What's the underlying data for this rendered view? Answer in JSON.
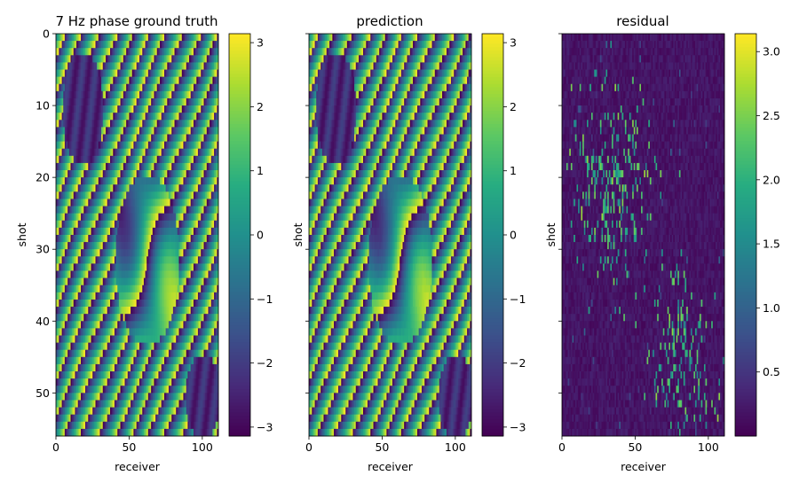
{
  "figure": {
    "panels": [
      {
        "title": "7 Hz phase ground truth",
        "kind": "phase",
        "seed": 1,
        "show_ytick_labels": true
      },
      {
        "title": "prediction",
        "kind": "phase",
        "seed": 2,
        "show_ytick_labels": false
      },
      {
        "title": "residual",
        "kind": "residual",
        "seed": 3,
        "show_ytick_labels": false
      }
    ],
    "colormap": [
      "#440154",
      "#472c7a",
      "#3b518b",
      "#2c718e",
      "#21908d",
      "#27ad81",
      "#5cc863",
      "#aadc32",
      "#fde725"
    ]
  },
  "chart_data": [
    {
      "type": "heatmap",
      "title": "7 Hz phase ground truth",
      "xlabel": "receiver",
      "ylabel": "shot",
      "xlim": [
        0,
        111
      ],
      "ylim": [
        56,
        0
      ],
      "xticks": [
        0,
        50,
        100
      ],
      "yticks": [
        0,
        10,
        20,
        30,
        40,
        50
      ],
      "colorbar": {
        "min": -3.14,
        "max": 3.14,
        "ticks": [
          3,
          2,
          1,
          0,
          -1,
          -2,
          -3
        ],
        "tick_labels": [
          "3",
          "2",
          "1",
          "0",
          "−1",
          "−2",
          "−3"
        ]
      }
    },
    {
      "type": "heatmap",
      "title": "prediction",
      "xlabel": "receiver",
      "ylabel": "shot",
      "xlim": [
        0,
        111
      ],
      "ylim": [
        56,
        0
      ],
      "xticks": [
        0,
        50,
        100
      ],
      "yticks": [
        0,
        10,
        20,
        30,
        40,
        50
      ],
      "colorbar": {
        "min": -3.14,
        "max": 3.14,
        "ticks": [
          3,
          2,
          1,
          0,
          -1,
          -2,
          -3
        ],
        "tick_labels": [
          "3",
          "2",
          "1",
          "0",
          "−1",
          "−2",
          "−3"
        ]
      }
    },
    {
      "type": "heatmap",
      "title": "residual",
      "xlabel": "receiver",
      "ylabel": "shot",
      "xlim": [
        0,
        111
      ],
      "ylim": [
        56,
        0
      ],
      "xticks": [
        0,
        50,
        100
      ],
      "yticks": [
        0,
        10,
        20,
        30,
        40,
        50
      ],
      "colorbar": {
        "min": 0.0,
        "max": 3.14,
        "ticks": [
          3.0,
          2.5,
          2.0,
          1.5,
          1.0,
          0.5
        ],
        "tick_labels": [
          "3.0",
          "2.5",
          "2.0",
          "1.5",
          "1.0",
          "0.5"
        ]
      }
    }
  ]
}
